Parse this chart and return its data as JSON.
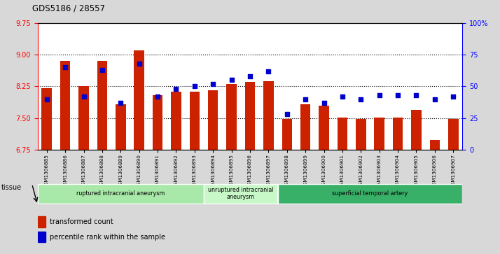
{
  "title": "GDS5186 / 28557",
  "samples": [
    "GSM1306885",
    "GSM1306886",
    "GSM1306887",
    "GSM1306888",
    "GSM1306889",
    "GSM1306890",
    "GSM1306891",
    "GSM1306892",
    "GSM1306893",
    "GSM1306894",
    "GSM1306895",
    "GSM1306896",
    "GSM1306897",
    "GSM1306898",
    "GSM1306899",
    "GSM1306900",
    "GSM1306901",
    "GSM1306902",
    "GSM1306903",
    "GSM1306904",
    "GSM1306905",
    "GSM1306906",
    "GSM1306907"
  ],
  "red_values": [
    8.2,
    8.85,
    8.25,
    8.85,
    7.82,
    9.1,
    8.05,
    8.12,
    8.12,
    8.15,
    8.3,
    8.35,
    8.38,
    7.48,
    7.82,
    7.8,
    7.52,
    7.48,
    7.52,
    7.52,
    7.7,
    6.98,
    7.48
  ],
  "blue_values_pct": [
    40,
    65,
    42,
    63,
    37,
    68,
    42,
    48,
    50,
    52,
    55,
    58,
    62,
    28,
    40,
    37,
    42,
    40,
    43,
    43,
    43,
    40,
    42
  ],
  "ylim_left": [
    6.75,
    9.75
  ],
  "ylim_right": [
    0,
    100
  ],
  "yticks_left": [
    6.75,
    7.5,
    8.25,
    9.0,
    9.75
  ],
  "yticks_right": [
    0,
    25,
    50,
    75,
    100
  ],
  "groups": [
    {
      "label": "ruptured intracranial aneurysm",
      "start": 0,
      "end": 9,
      "color": "#a8e8a8"
    },
    {
      "label": "unruptured intracranial\naneurysm",
      "start": 9,
      "end": 13,
      "color": "#c8f8c8"
    },
    {
      "label": "superficial temporal artery",
      "start": 13,
      "end": 23,
      "color": "#38b068"
    }
  ],
  "tissue_label": "tissue",
  "legend_red": "transformed count",
  "legend_blue": "percentile rank within the sample",
  "bar_color": "#cc2200",
  "dot_color": "#0000cc",
  "background_color": "#d8d8d8",
  "plot_bg_color": "#ffffff",
  "grid_color": "#000000"
}
